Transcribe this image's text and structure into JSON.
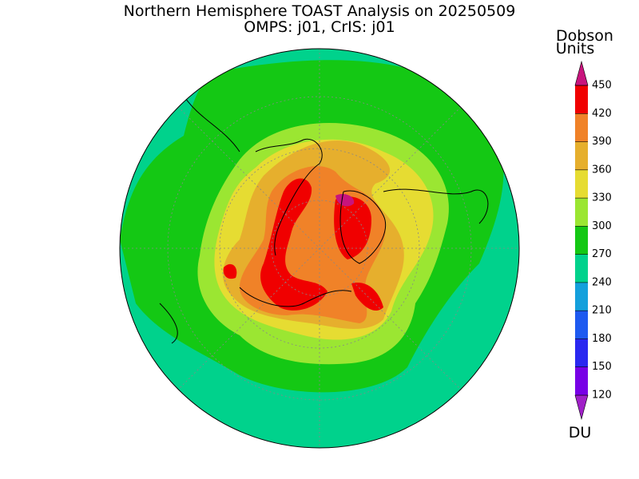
{
  "title": "Northern Hemisphere TOAST Analysis on 20250509",
  "subtitle": "OMPS: j01, CrIS: j01",
  "colorbar": {
    "title_lines": [
      "Dobson",
      "Units"
    ],
    "unit": "DU",
    "ticks": [
      120,
      150,
      180,
      210,
      240,
      270,
      300,
      330,
      360,
      390,
      420,
      450
    ],
    "colors": [
      "#a020c8",
      "#7800e6",
      "#2a28f0",
      "#1e5af0",
      "#14a0dc",
      "#00d28c",
      "#14c814",
      "#9be632",
      "#e6dc32",
      "#e6af2d",
      "#f08228",
      "#f00000",
      "#c8147d"
    ]
  }
}
